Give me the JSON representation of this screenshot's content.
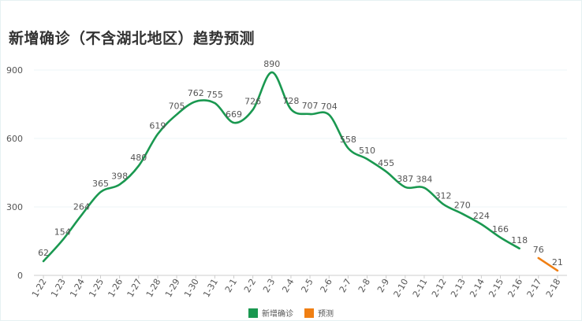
{
  "chart_data": {
    "type": "line",
    "title": "新增确诊（不含湖北地区）趋势预测",
    "categories": [
      "1-22",
      "1-23",
      "1-24",
      "1-25",
      "1-26",
      "1-27",
      "1-28",
      "1-29",
      "1-30",
      "1-31",
      "2-1",
      "2-2",
      "2-3",
      "2-4",
      "2-5",
      "2-6",
      "2-7",
      "2-8",
      "2-9",
      "2-10",
      "2-11",
      "2-12",
      "2-13",
      "2-14",
      "2-15",
      "2-16",
      "2-17",
      "2-18"
    ],
    "ylim": [
      0,
      900
    ],
    "yticks": [
      0,
      300,
      600,
      900
    ],
    "grid": true,
    "legend_position": "bottom-center",
    "series": [
      {
        "name": "新增确诊",
        "color": "#1a9850",
        "values": [
          62,
          154,
          264,
          365,
          398,
          480,
          619,
          705,
          762,
          755,
          669,
          726,
          890,
          728,
          707,
          704,
          558,
          510,
          455,
          387,
          384,
          312,
          270,
          224,
          166,
          118,
          null,
          null
        ]
      },
      {
        "name": "预测",
        "color": "#f07f13",
        "values": [
          null,
          null,
          null,
          null,
          null,
          null,
          null,
          null,
          null,
          null,
          null,
          null,
          null,
          null,
          null,
          null,
          null,
          null,
          null,
          null,
          null,
          null,
          null,
          null,
          null,
          null,
          76,
          21
        ]
      }
    ]
  }
}
